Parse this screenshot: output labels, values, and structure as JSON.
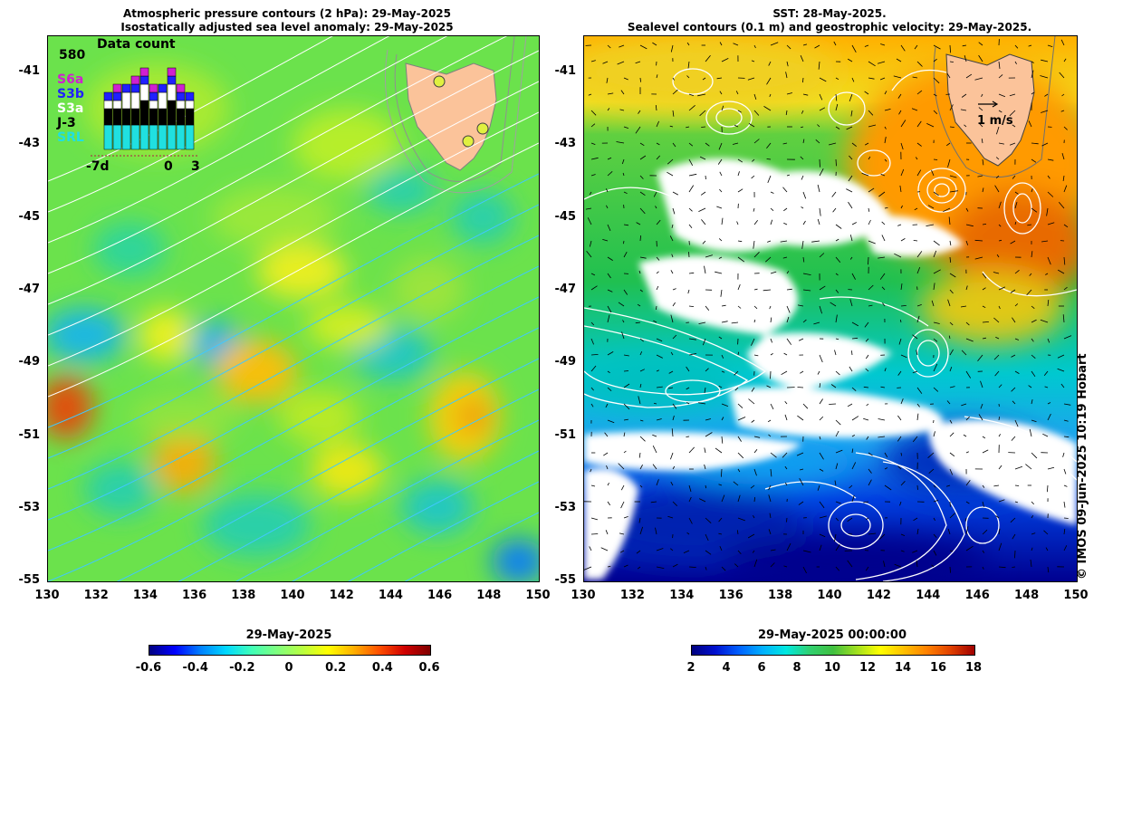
{
  "left_map": {
    "title_line1": "Atmospheric pressure contours (2 hPa): 29-May-2025",
    "title_line2": "Isostatically adjusted sea level anomaly: 29-May-2025",
    "colorbar_label": "29-May-2025",
    "colorbar_ticks": [
      "-0.6",
      "-0.4",
      "-0.2",
      "0",
      "0.2",
      "0.4",
      "0.6"
    ]
  },
  "right_map": {
    "title_line1": "SST: 28-May-2025.",
    "title_line2": "Sealevel contours (0.1 m) and geostrophic velocity: 29-May-2025.",
    "colorbar_label": "29-May-2025 00:00:00",
    "colorbar_ticks": [
      "2",
      "4",
      "6",
      "8",
      "10",
      "12",
      "14",
      "16",
      "18"
    ],
    "velocity_scale_label": "1 m/s"
  },
  "axes": {
    "lat_ticks": [
      "-41",
      "-43",
      "-45",
      "-47",
      "-49",
      "-51",
      "-53",
      "-55"
    ],
    "lon_ticks": [
      "130",
      "132",
      "134",
      "136",
      "138",
      "140",
      "142",
      "144",
      "146",
      "148",
      "150"
    ]
  },
  "inset": {
    "title": "Data count",
    "max_count": "580",
    "x_labels": [
      "-7d",
      "0",
      "3"
    ],
    "satellites": [
      {
        "name": "S6a",
        "color": "#d020d0"
      },
      {
        "name": "S3b",
        "color": "#2020ff"
      },
      {
        "name": "S3a",
        "color": "#ffffff"
      },
      {
        "name": "J-3",
        "color": "#000000"
      },
      {
        "name": "SRL",
        "color": "#20e0e0"
      }
    ],
    "bar_colors_fill": "#00c000"
  },
  "credit": "© IMOS 09-Jun-2025 10:19 Hobart",
  "colors": {
    "land": "#fbc39a",
    "ocean_mid": "#55e05a"
  }
}
